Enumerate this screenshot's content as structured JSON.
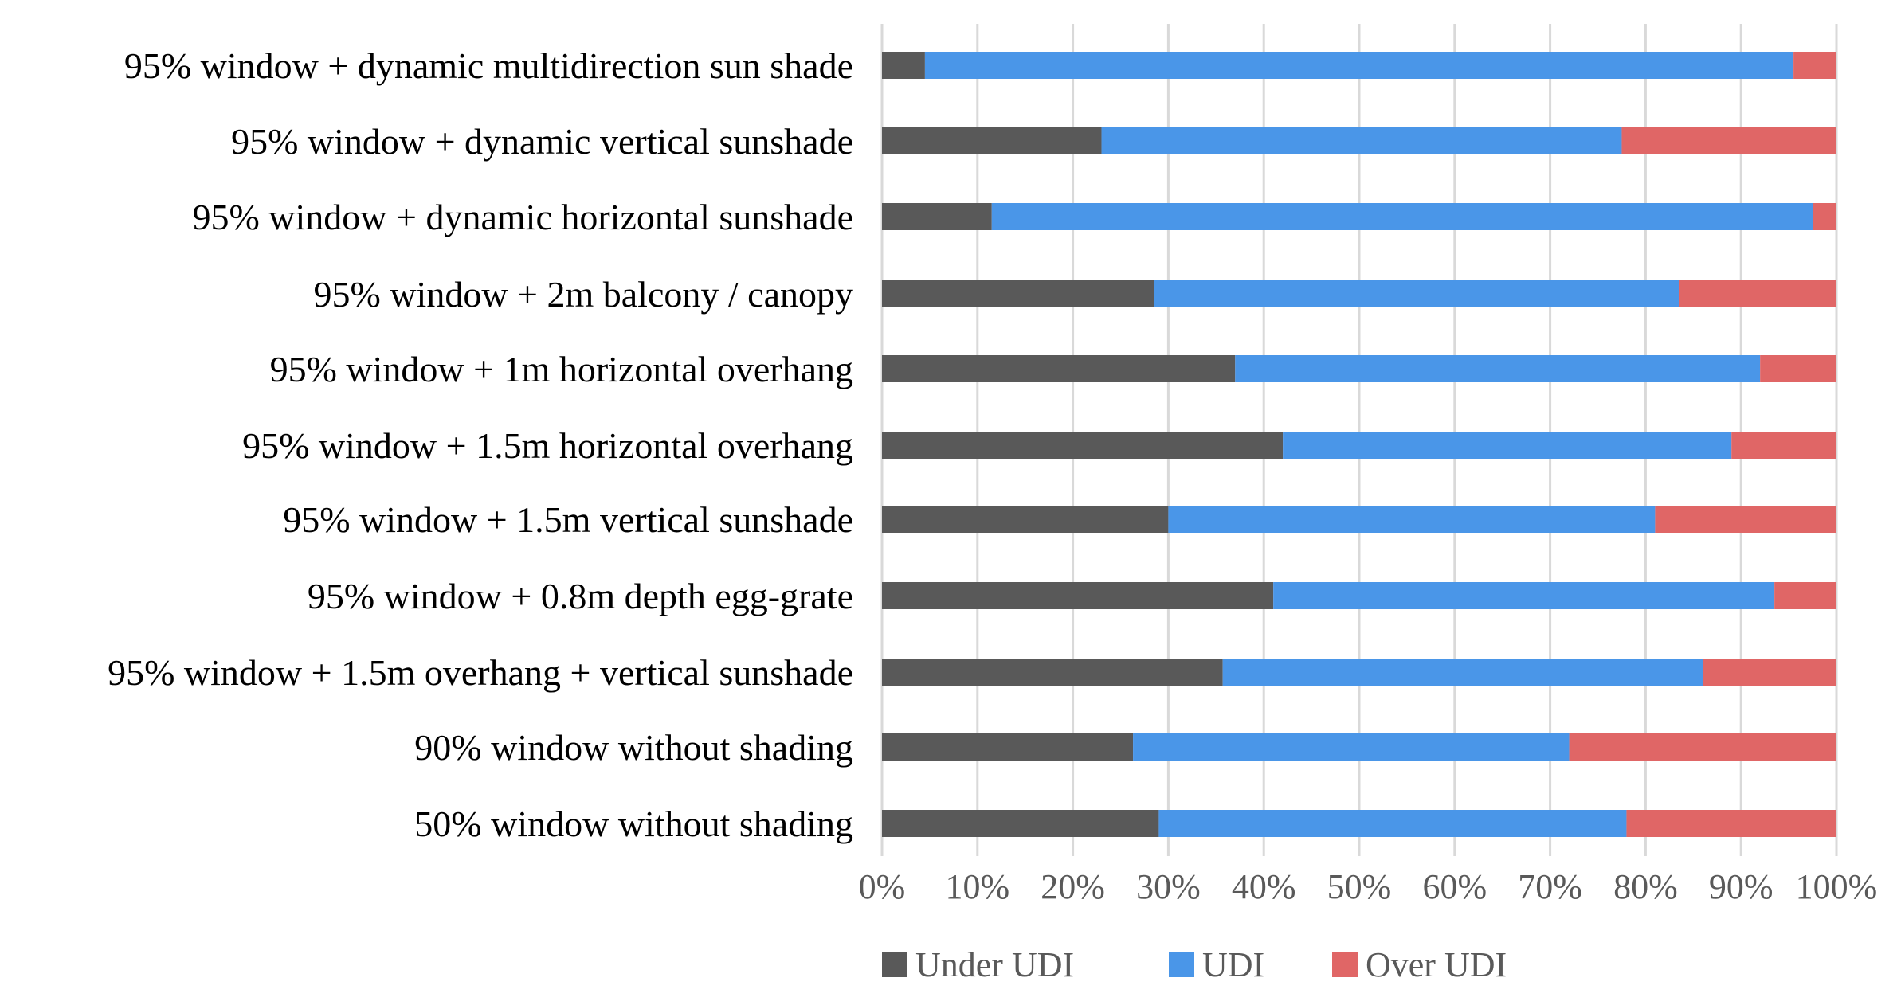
{
  "chart_data": {
    "type": "bar",
    "orientation": "horizontal",
    "stacked": "percent",
    "title": "",
    "xlabel": "",
    "ylabel": "",
    "xlim": [
      0,
      100
    ],
    "x_ticks": [
      "0%",
      "10%",
      "20%",
      "30%",
      "40%",
      "50%",
      "60%",
      "70%",
      "80%",
      "90%",
      "100%"
    ],
    "grid": true,
    "legend_position": "bottom",
    "categories": [
      "95% window + dynamic multidirection sun shade",
      "95% window + dynamic vertical sunshade",
      "95% window + dynamic horizontal sunshade",
      "95% window + 2m balcony / canopy",
      "95% window + 1m horizontal overhang",
      "95% window + 1.5m horizontal overhang",
      "95% window + 1.5m vertical sunshade",
      "95% window + 0.8m depth egg-grate",
      "95% window + 1.5m overhang + vertical sunshade",
      "90% window without shading",
      "50% window without shading"
    ],
    "series": [
      {
        "name": "Under UDI",
        "color": "#595959",
        "values": [
          4.5,
          23,
          11.5,
          28.5,
          37,
          42,
          30,
          41,
          35.7,
          26.3,
          29
        ]
      },
      {
        "name": "UDI",
        "color": "#4a96e8",
        "values": [
          91,
          54.5,
          86,
          55,
          55,
          47,
          51,
          52.5,
          50.3,
          45.7,
          49
        ]
      },
      {
        "name": "Over UDI",
        "color": "#e06666",
        "values": [
          4.5,
          22.5,
          2.5,
          16.5,
          8,
          11,
          19,
          6.5,
          14,
          28,
          22
        ]
      }
    ]
  }
}
